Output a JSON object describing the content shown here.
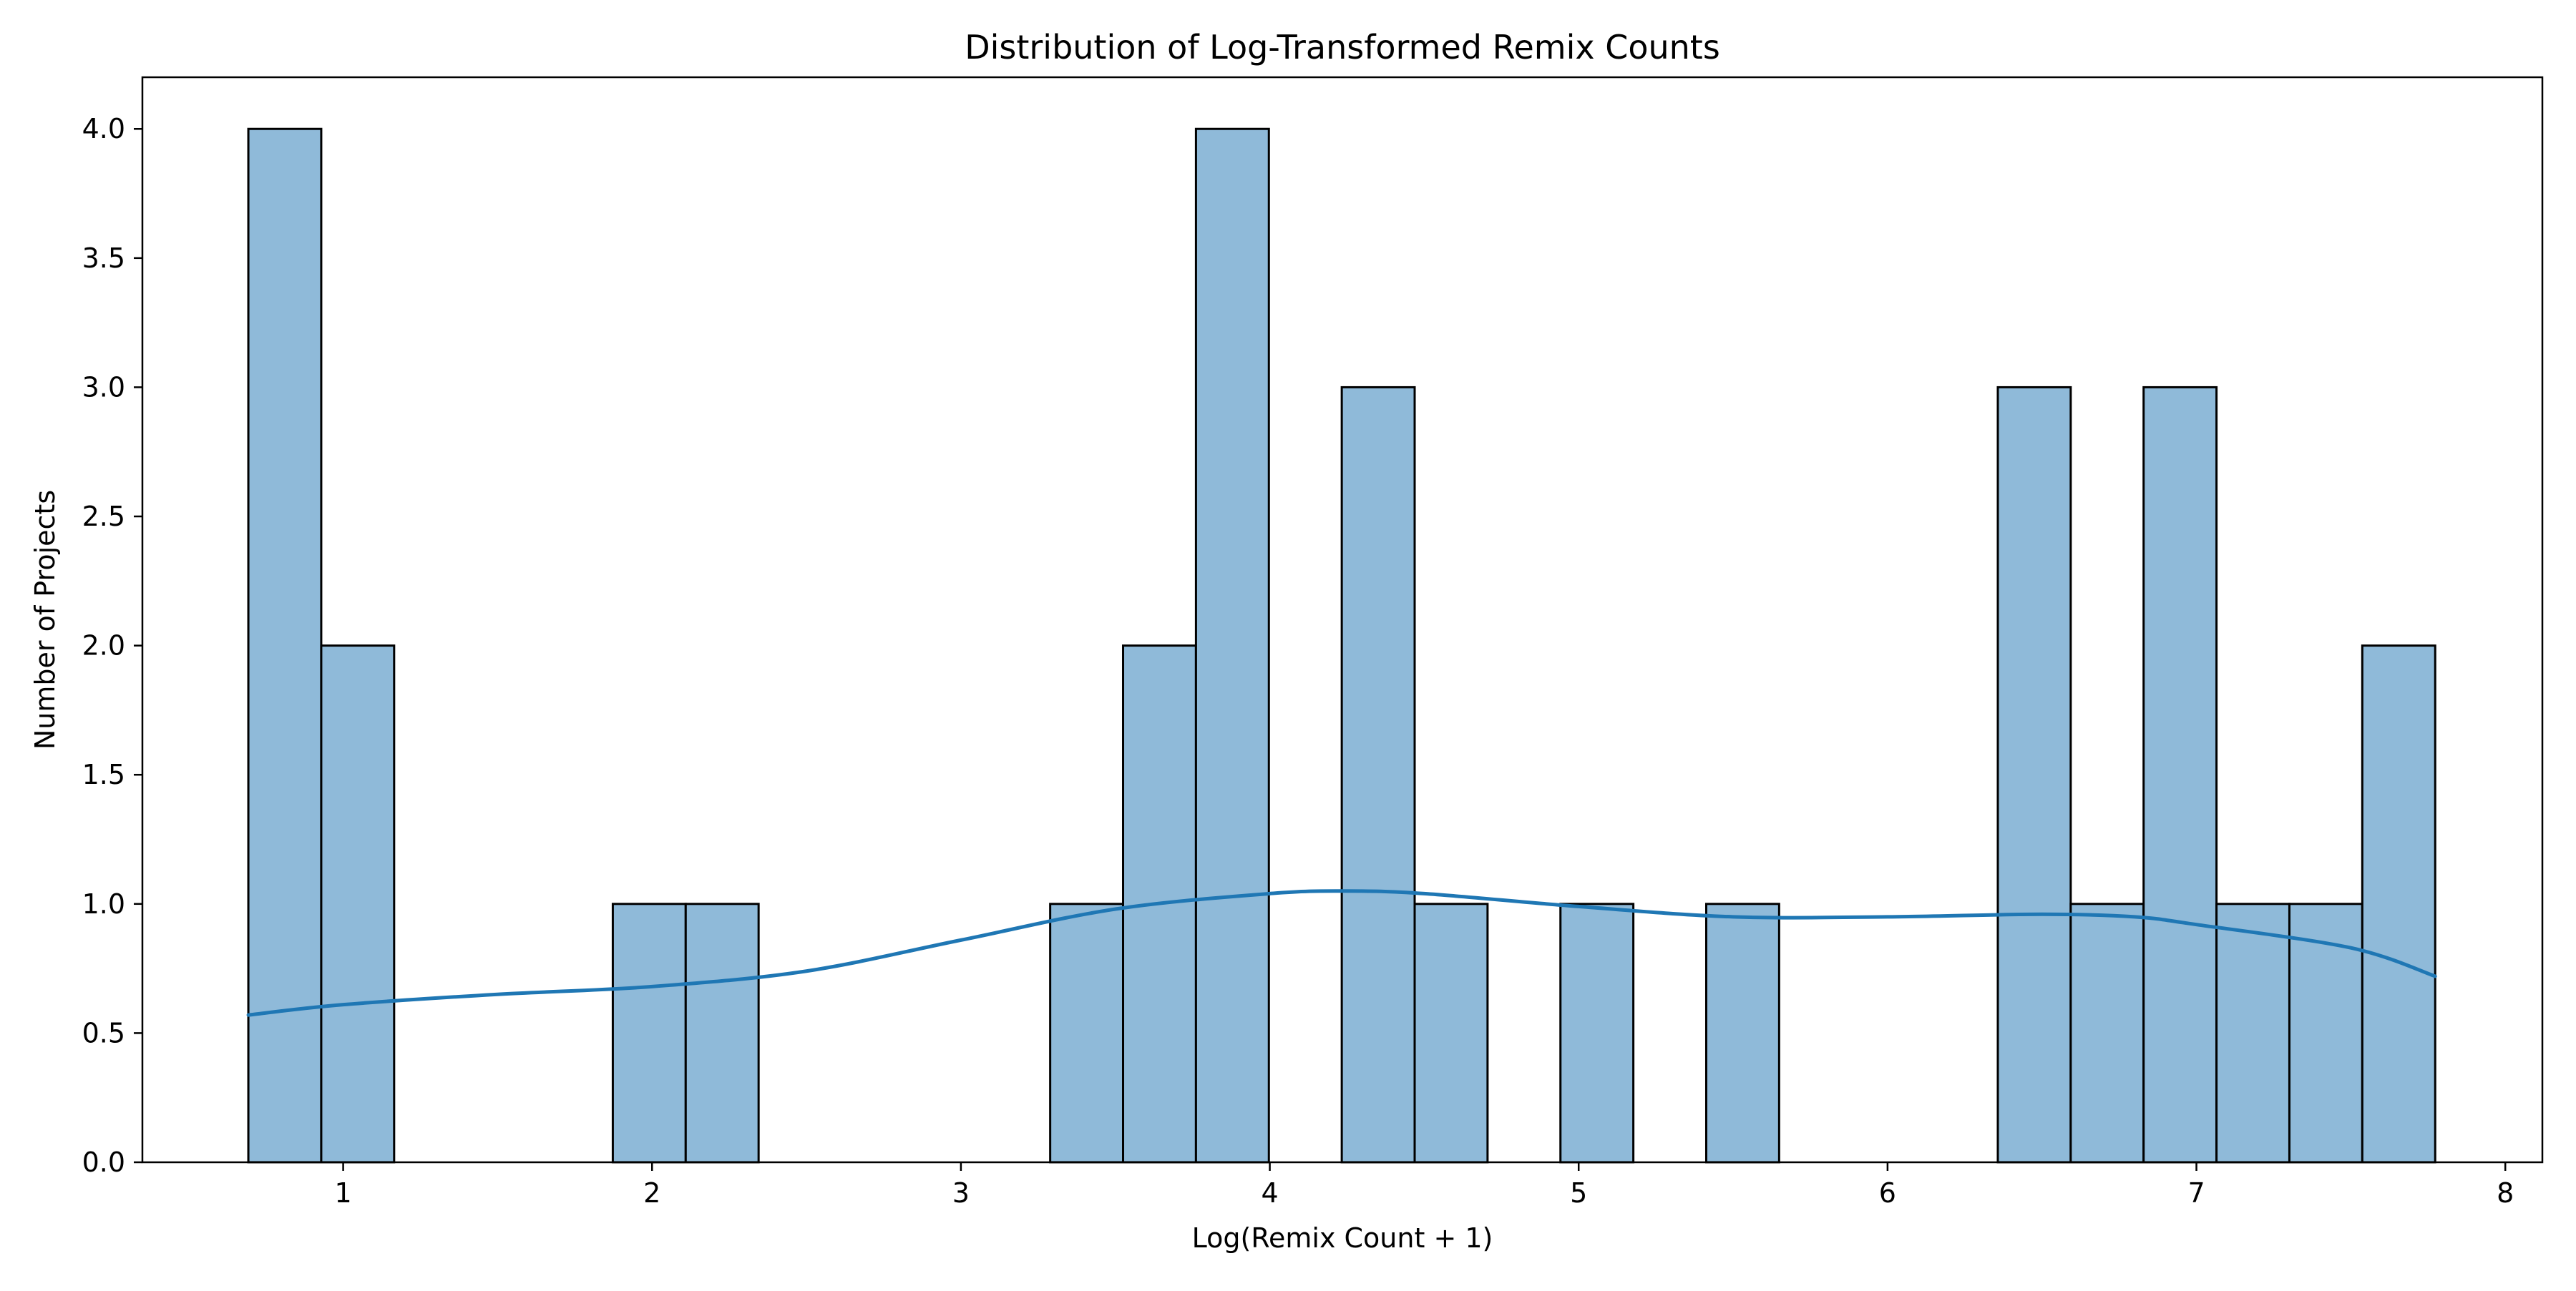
{
  "chart_data": {
    "type": "bar",
    "subtype": "histogram-with-kde",
    "title": "Distribution of Log-Transformed Remix Counts",
    "xlabel": "Log(Remix Count + 1)",
    "ylabel": "Number of Projects",
    "xlim": [
      0.35,
      8.12
    ],
    "ylim": [
      0,
      4.2
    ],
    "xticks": [
      1,
      2,
      3,
      4,
      5,
      6,
      7,
      8
    ],
    "xtick_labels": [
      "1",
      "2",
      "3",
      "4",
      "5",
      "6",
      "7",
      "8"
    ],
    "yticks": [
      0,
      0.5,
      1,
      1.5,
      2,
      2.5,
      3,
      3.5,
      4
    ],
    "ytick_labels": [
      "0.0",
      "0.5",
      "1.0",
      "1.5",
      "2.0",
      "2.5",
      "3.0",
      "3.5",
      "4.0"
    ],
    "grid": false,
    "bin_width": 0.236,
    "bins": [
      {
        "x0": 0.693,
        "x1": 0.929,
        "count": 4
      },
      {
        "x0": 0.929,
        "x1": 1.165,
        "count": 2
      },
      {
        "x0": 1.165,
        "x1": 1.401,
        "count": 0
      },
      {
        "x0": 1.401,
        "x1": 1.637,
        "count": 0
      },
      {
        "x0": 1.637,
        "x1": 1.873,
        "count": 0
      },
      {
        "x0": 1.873,
        "x1": 2.109,
        "count": 1
      },
      {
        "x0": 2.109,
        "x1": 2.345,
        "count": 1
      },
      {
        "x0": 2.345,
        "x1": 2.581,
        "count": 0
      },
      {
        "x0": 2.581,
        "x1": 2.817,
        "count": 0
      },
      {
        "x0": 2.817,
        "x1": 3.053,
        "count": 0
      },
      {
        "x0": 3.053,
        "x1": 3.289,
        "count": 0
      },
      {
        "x0": 3.289,
        "x1": 3.525,
        "count": 1
      },
      {
        "x0": 3.525,
        "x1": 3.761,
        "count": 2
      },
      {
        "x0": 3.761,
        "x1": 3.997,
        "count": 4
      },
      {
        "x0": 3.997,
        "x1": 4.233,
        "count": 0
      },
      {
        "x0": 4.233,
        "x1": 4.469,
        "count": 3
      },
      {
        "x0": 4.469,
        "x1": 4.705,
        "count": 1
      },
      {
        "x0": 4.705,
        "x1": 4.941,
        "count": 0
      },
      {
        "x0": 4.941,
        "x1": 5.177,
        "count": 1
      },
      {
        "x0": 5.177,
        "x1": 5.413,
        "count": 0
      },
      {
        "x0": 5.413,
        "x1": 5.649,
        "count": 1
      },
      {
        "x0": 5.649,
        "x1": 5.885,
        "count": 0
      },
      {
        "x0": 5.885,
        "x1": 6.121,
        "count": 0
      },
      {
        "x0": 6.121,
        "x1": 6.357,
        "count": 0
      },
      {
        "x0": 6.357,
        "x1": 6.593,
        "count": 3
      },
      {
        "x0": 6.593,
        "x1": 6.829,
        "count": 1
      },
      {
        "x0": 6.829,
        "x1": 7.065,
        "count": 3
      },
      {
        "x0": 7.065,
        "x1": 7.301,
        "count": 1
      },
      {
        "x0": 7.301,
        "x1": 7.537,
        "count": 1
      },
      {
        "x0": 7.537,
        "x1": 7.773,
        "count": 2
      }
    ],
    "kde": {
      "x": [
        0.693,
        1.0,
        1.5,
        2.0,
        2.5,
        3.0,
        3.5,
        4.0,
        4.25,
        4.5,
        5.0,
        5.5,
        6.0,
        6.5,
        6.8,
        7.0,
        7.5,
        7.773
      ],
      "y": [
        0.57,
        0.61,
        0.65,
        0.68,
        0.74,
        0.86,
        0.98,
        1.04,
        1.05,
        1.04,
        0.99,
        0.95,
        0.95,
        0.96,
        0.95,
        0.92,
        0.83,
        0.72
      ]
    },
    "colors": {
      "bar_fill": "#8fbad9",
      "bar_edge": "#000000",
      "kde_line": "#1f77b4",
      "axes": "#000000",
      "background": "#ffffff"
    }
  }
}
